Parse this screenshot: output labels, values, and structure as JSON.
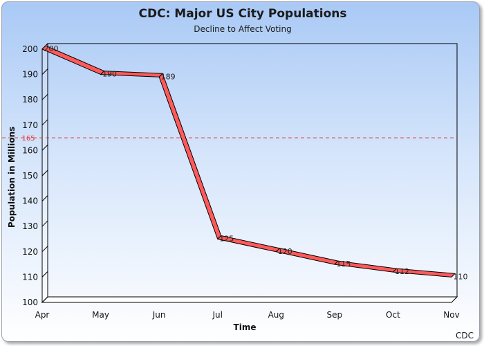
{
  "chart_data": {
    "type": "line",
    "title": "CDC: Major US City Populations",
    "subtitle": "Decline to Affect Voting",
    "xlabel": "Time",
    "ylabel": "Population in Millions",
    "categories": [
      "Apr",
      "May",
      "Jun",
      "Jul",
      "Aug",
      "Sep",
      "Oct",
      "Nov"
    ],
    "series": [
      {
        "values": [
          200,
          190,
          189,
          125,
          120,
          115,
          112,
          110
        ],
        "color": "#ff5a5a"
      }
    ],
    "data_labels": [
      "200",
      "190",
      "189",
      "125",
      "120",
      "115",
      "112",
      "110"
    ],
    "ylim": [
      100,
      200
    ],
    "yticks": [
      "100",
      "110",
      "120",
      "130",
      "140",
      "150",
      "160",
      "170",
      "180",
      "190",
      "200"
    ],
    "reference_line": {
      "value": 165,
      "label": "165",
      "color": "#e03030",
      "style": "dashed"
    },
    "grid": false,
    "legend": "none",
    "source": "CDC",
    "style": "3d-ribbon"
  }
}
